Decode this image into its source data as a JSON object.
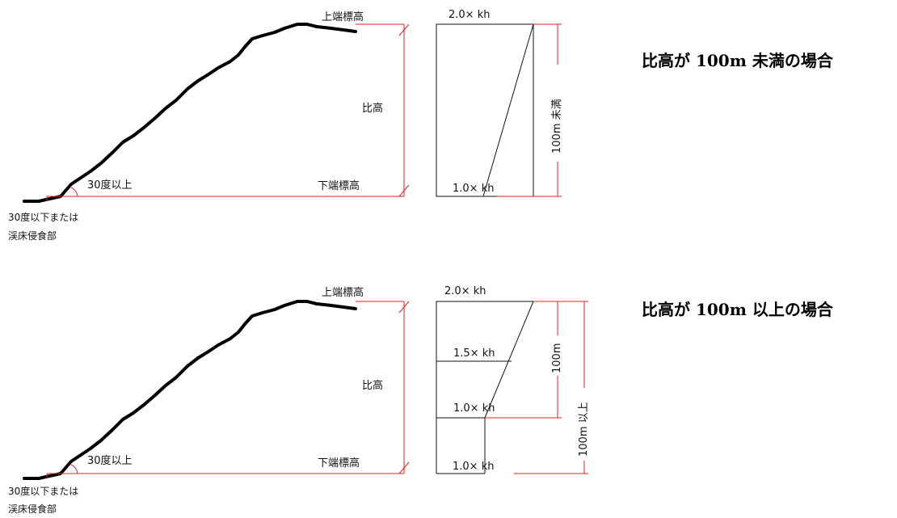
{
  "upper": {
    "top_elevation": "上端標高",
    "relative_height": "比高",
    "bottom_elevation": "下端標高",
    "slope_angle": "30度以上",
    "foot_line1": "30度以下または",
    "foot_line2": "渓床侵食部",
    "factor_top": "2.0× kh",
    "factor_bottom": "1.0× kh",
    "height_range": "100m 未満",
    "caption": "比高が 100m 未満の場合"
  },
  "lower": {
    "top_elevation": "上端標高",
    "relative_height": "比高",
    "bottom_elevation": "下端標高",
    "slope_angle": "30度以上",
    "foot_line1": "30度以下または",
    "foot_line2": "渓床侵食部",
    "factor_top": "2.0× kh",
    "factor_mid": "1.5× kh",
    "factor_lower": "1.0× kh",
    "factor_bottom": "1.0× kh",
    "height_100m": "100m",
    "height_over": "100m 以上",
    "caption": "比高が 100m 以上の場合"
  }
}
